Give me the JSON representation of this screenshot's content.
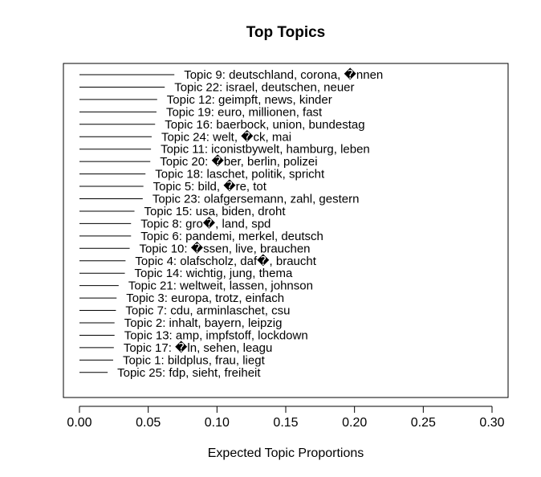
{
  "chart_data": {
    "type": "bar",
    "orientation": "horizontal",
    "title": "Top Topics",
    "xlabel": "Expected Topic Proportions",
    "ylabel": "",
    "xlim": [
      0,
      0.3
    ],
    "xticks": [
      0.0,
      0.05,
      0.1,
      0.15,
      0.2,
      0.25,
      0.3
    ],
    "xtick_labels": [
      "0.00",
      "0.05",
      "0.10",
      "0.15",
      "0.20",
      "0.25",
      "0.30"
    ],
    "grid": false,
    "legend": "none",
    "bar_color": "#000000",
    "categories": [
      "Topic 9: deutschland, corona, �nnen",
      "Topic 22: israel, deutschen, neuer",
      "Topic 12: geimpft, news, kinder",
      "Topic 19: euro, millionen, fast",
      "Topic 16: baerbock, union, bundestag",
      "Topic 24: welt, �ck, mai",
      "Topic 11: iconistbywelt, hamburg, leben",
      "Topic 20: �ber, berlin, polizei",
      "Topic 18: laschet, politik, spricht",
      "Topic 5: bild, �re, tot",
      "Topic 23: olafgersemann, zahl, gestern",
      "Topic 15: usa, biden, droht",
      "Topic 8: gro�, land, spd",
      "Topic 6: pandemi, merkel, deutsch",
      "Topic 10: �ssen, live, brauchen",
      "Topic 4: olafscholz, daf�, braucht",
      "Topic 14: wichtig, jung, thema",
      "Topic 21: weltweit, lassen, johnson",
      "Topic 3: europa, trotz, einfach",
      "Topic 7: cdu, arminlaschet, csu",
      "Topic 2: inhalt, bayern, leipzig",
      "Topic 13: amp, impfstoff, lockdown",
      "Topic 17: �ln, sehen, leagu",
      "Topic 1: bildplus, frau, liegt",
      "Topic 25: fdp, sieht, freiheit"
    ],
    "values": [
      0.069,
      0.062,
      0.0565,
      0.056,
      0.055,
      0.0525,
      0.052,
      0.0515,
      0.048,
      0.0465,
      0.046,
      0.04,
      0.0375,
      0.0375,
      0.0365,
      0.0335,
      0.033,
      0.0285,
      0.027,
      0.0265,
      0.0255,
      0.0255,
      0.025,
      0.0245,
      0.0205
    ]
  }
}
